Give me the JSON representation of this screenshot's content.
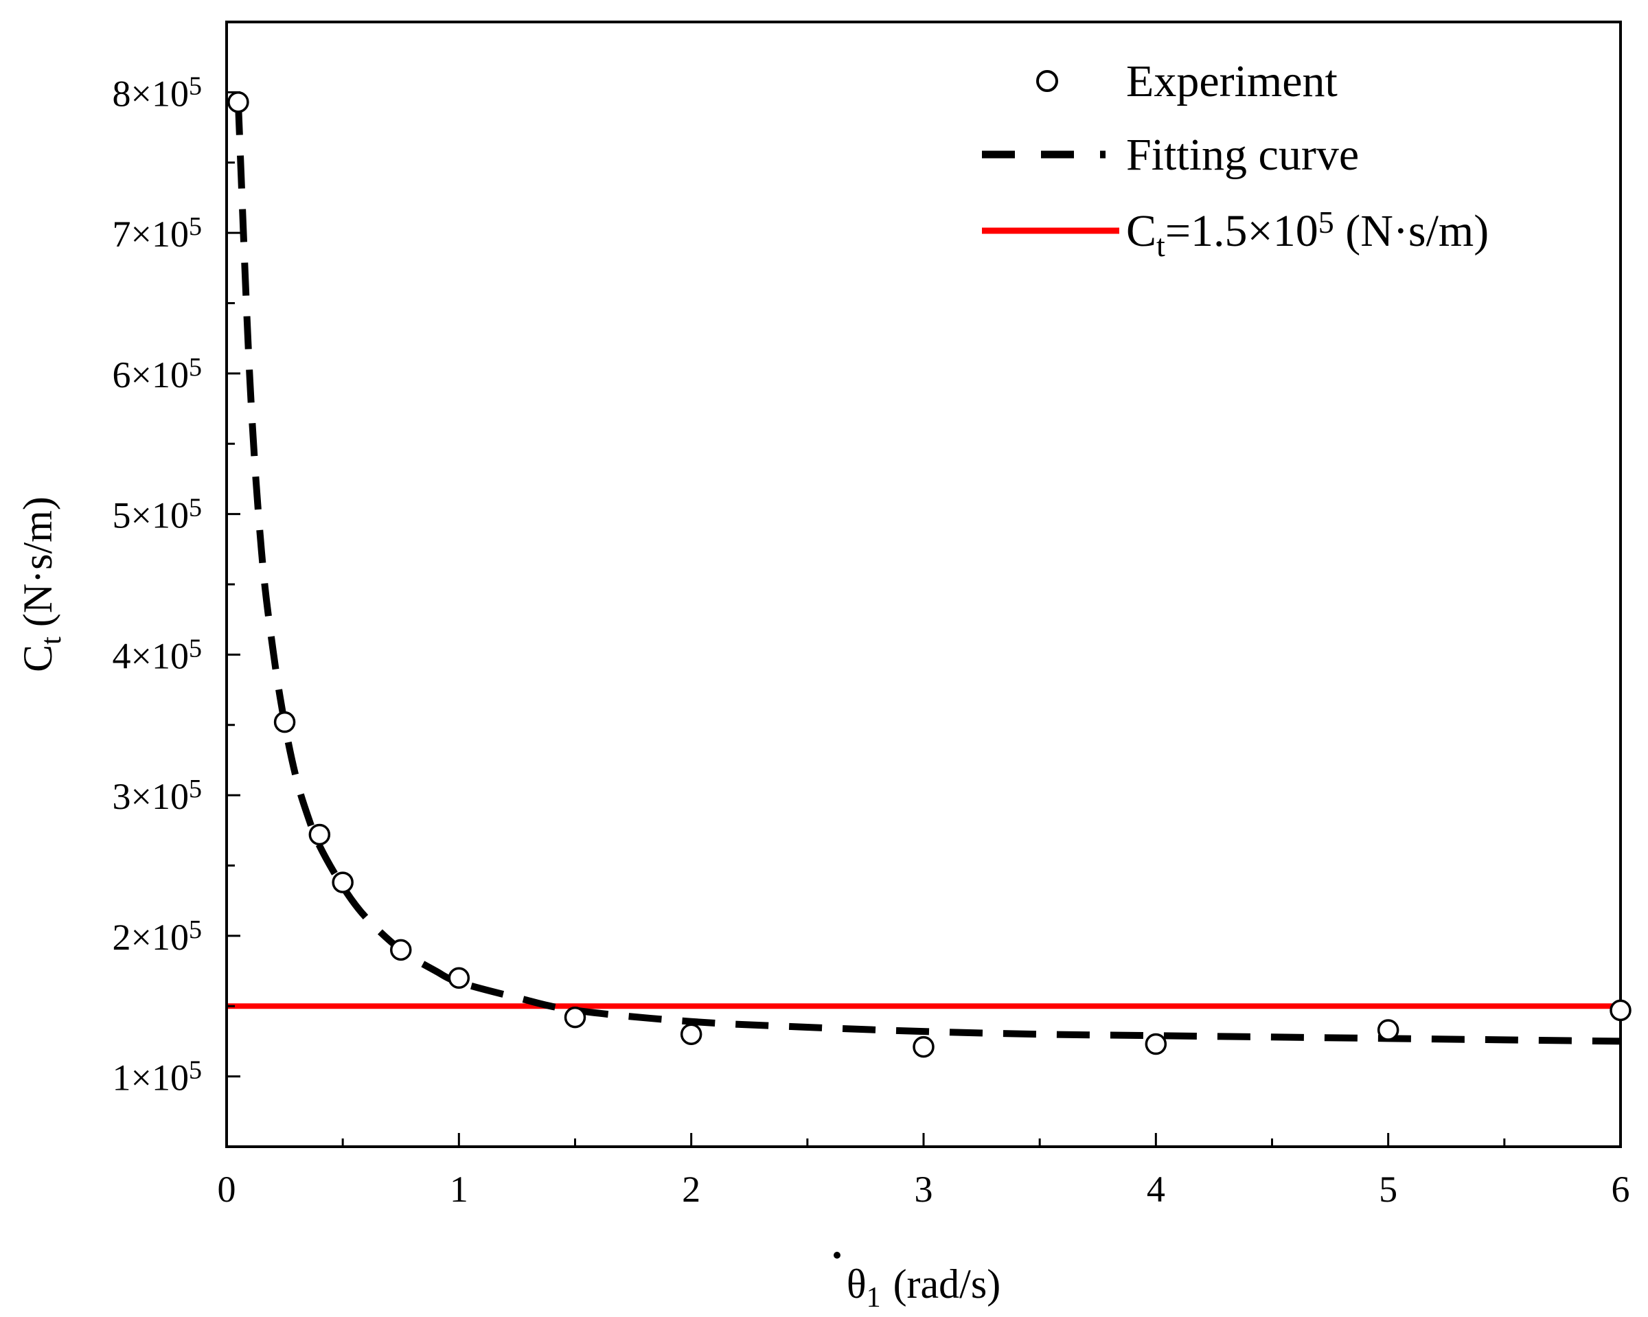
{
  "chart_data": {
    "type": "scatter",
    "title": "",
    "xlabel": {
      "symbol": "θ",
      "subscript": "1",
      "unit": "(rad/s)"
    },
    "ylabel": {
      "symbol": "C",
      "subscript": "t",
      "unit": "(N·s/m)"
    },
    "xlim": [
      0,
      6
    ],
    "ylim": [
      50000,
      850000
    ],
    "grid": false,
    "legend_position": "top-right",
    "x_ticks": [
      {
        "value": 0,
        "label": "0"
      },
      {
        "value": 1,
        "label": "1"
      },
      {
        "value": 2,
        "label": "2"
      },
      {
        "value": 3,
        "label": "3"
      },
      {
        "value": 4,
        "label": "4"
      },
      {
        "value": 5,
        "label": "5"
      },
      {
        "value": 6,
        "label": "6"
      }
    ],
    "y_ticks": [
      {
        "value": 100000,
        "mantissa": "1×10",
        "exponent": "5"
      },
      {
        "value": 200000,
        "mantissa": "2×10",
        "exponent": "5"
      },
      {
        "value": 300000,
        "mantissa": "3×10",
        "exponent": "5"
      },
      {
        "value": 400000,
        "mantissa": "4×10",
        "exponent": "5"
      },
      {
        "value": 500000,
        "mantissa": "5×10",
        "exponent": "5"
      },
      {
        "value": 600000,
        "mantissa": "6×10",
        "exponent": "5"
      },
      {
        "value": 700000,
        "mantissa": "7×10",
        "exponent": "5"
      },
      {
        "value": 800000,
        "mantissa": "8×10",
        "exponent": "5"
      }
    ],
    "series": [
      {
        "name": "Experiment",
        "type": "scatter",
        "marker": "open-circle",
        "color": "#000000",
        "x": [
          0.05,
          0.25,
          0.4,
          0.5,
          0.75,
          1.0,
          1.5,
          2.0,
          3.0,
          4.0,
          5.0,
          6.0
        ],
        "y": [
          793000,
          352000,
          272000,
          238000,
          190000,
          170000,
          142000,
          130000,
          121000,
          123000,
          133000,
          147000
        ]
      },
      {
        "name": "Fitting curve",
        "type": "line",
        "style": "dashed",
        "color": "#000000",
        "x": [
          0.05,
          0.1,
          0.15,
          0.2,
          0.25,
          0.3,
          0.35,
          0.4,
          0.5,
          0.6,
          0.75,
          0.9,
          1.0,
          1.25,
          1.5,
          2.0,
          2.5,
          3.0,
          3.5,
          4.0,
          4.5,
          5.0,
          5.5,
          6.0
        ],
        "y": [
          793000,
          596000,
          474000,
          403000,
          351000,
          312000,
          285000,
          264000,
          235000,
          213000,
          190000,
          175000,
          167000,
          156000,
          147000,
          139000,
          135000,
          132000,
          130000,
          129000,
          128000,
          127000,
          126000,
          125000
        ]
      },
      {
        "name": "C_t=1.5×10^5 (N·s/m)",
        "type": "hline",
        "style": "solid",
        "color": "#ff0000",
        "y_value": 150000
      }
    ],
    "legend": {
      "position": "top-right",
      "entries": [
        {
          "label": "Experiment",
          "marker": "open-circle"
        },
        {
          "label": "Fitting curve",
          "marker": "dashed-line"
        },
        {
          "label_main": "C",
          "label_sub": "t",
          "label_mid": "=1.5×10",
          "label_sup": "5",
          "label_end": " (N·s/m)",
          "marker": "red-line"
        }
      ]
    }
  }
}
